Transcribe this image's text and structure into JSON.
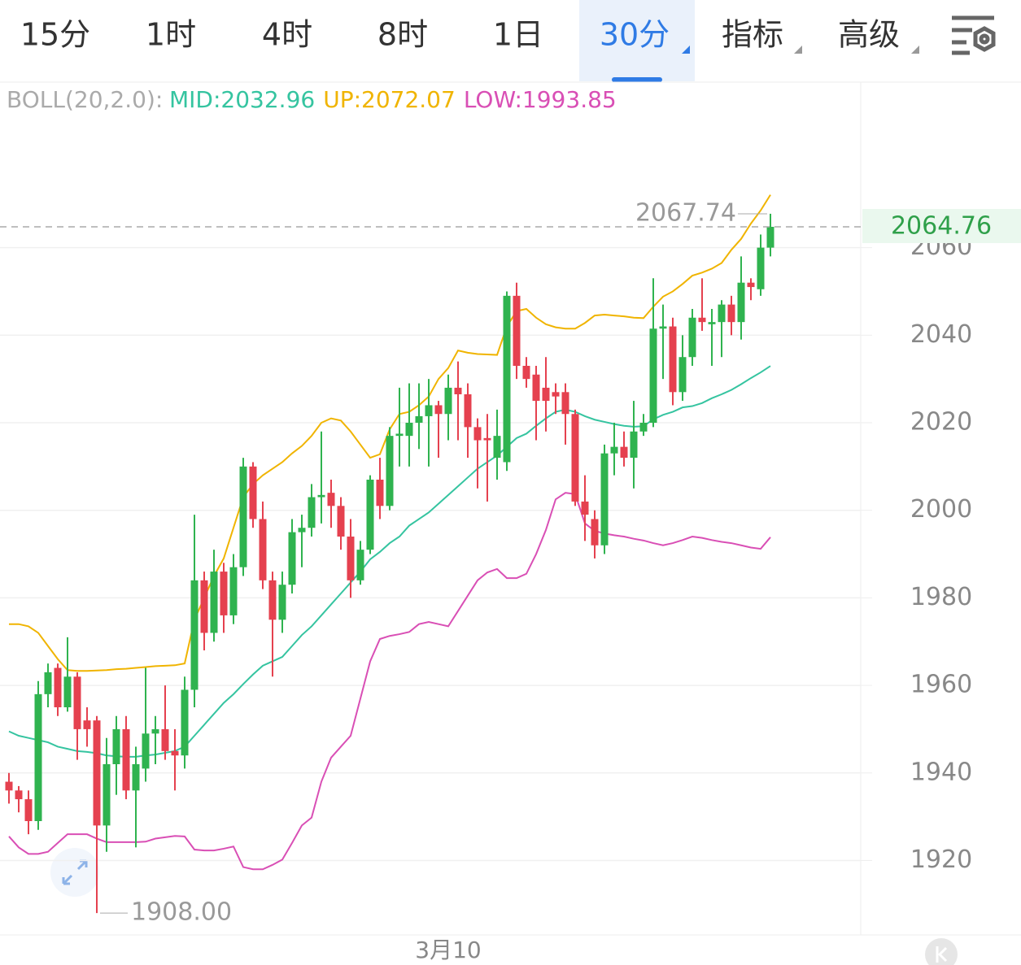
{
  "toolbar": {
    "tabs": [
      "15分",
      "1时",
      "4时",
      "8时",
      "1日",
      "30分",
      "指标",
      "高级"
    ],
    "active": 5
  },
  "chart_data": {
    "type": "candlestick",
    "indicator": "BOLL(20,2.0):",
    "categories": [
      null,
      null,
      null,
      null,
      null,
      null,
      null,
      null,
      null,
      null,
      null,
      null,
      null,
      null,
      null,
      null,
      null,
      null,
      null,
      null,
      null,
      null,
      null,
      null,
      null,
      null,
      null,
      null,
      null,
      null,
      null,
      null,
      null,
      null,
      null,
      null,
      null,
      null,
      null,
      null,
      null,
      null,
      null,
      null,
      null,
      "3月10",
      null,
      null,
      null,
      null,
      null,
      null,
      null,
      null,
      null,
      null,
      null,
      null,
      null,
      null,
      null,
      null,
      null,
      null,
      null,
      null,
      null,
      null,
      null,
      null,
      null,
      null,
      null,
      null,
      null,
      null,
      null,
      null,
      null
    ],
    "open": [
      1938,
      1936,
      1934,
      1929,
      1958,
      1964,
      1955,
      1962,
      1952,
      1952,
      1928,
      1942,
      1950,
      1936,
      1941,
      1949,
      1950,
      1945,
      1944,
      1959,
      1984,
      1972,
      1986,
      1976,
      1987,
      2010,
      1998,
      1984,
      1975,
      1983,
      1995,
      1996,
      2003,
      2004,
      2001,
      1994,
      1984,
      1991,
      2007,
      2001,
      2017,
      2017,
      2020,
      2021.5,
      2024,
      2022,
      2028,
      2026.5,
      2019,
      2016.5,
      2012,
      2011,
      2049,
      2033,
      2031,
      2028,
      2027,
      2027,
      2022,
      2002,
      1998,
      1992,
      2013,
      2014.5,
      2012,
      2018,
      2020,
      2041.5,
      2042,
      2027,
      2035,
      2044,
      2042.5,
      2043,
      2047,
      2043,
      2052,
      2050.5,
      2060
    ],
    "high": [
      1940,
      1937,
      1936,
      1961,
      1965,
      1965,
      1971,
      1963,
      1955,
      1953,
      1948,
      1953,
      1953,
      1946,
      1964,
      1953,
      1960,
      1950,
      1962,
      1999,
      1986,
      1991,
      1988,
      1990,
      2012,
      2011,
      2002,
      1986,
      1986,
      1998,
      1999,
      2006,
      2018,
      2007,
      2003,
      1998,
      1993,
      2008,
      2012,
      2019,
      2028,
      2029,
      2029,
      2030,
      2025,
      2031,
      2034,
      2029,
      2021,
      2022,
      2023,
      2050,
      2052,
      2035,
      2033,
      2035,
      2029,
      2029,
      2023,
      2008,
      2000,
      2015,
      2020,
      2018,
      2025,
      2022,
      2053,
      2047,
      2044,
      2040,
      2046,
      2053,
      2046,
      2048,
      2049,
      2058,
      2053,
      2063,
      2067.74
    ],
    "low": [
      1933,
      1931,
      1926,
      1927,
      1955,
      1953,
      1954,
      1943,
      1946,
      1908,
      1922,
      1935,
      1934,
      1923,
      1938,
      1942,
      1943,
      1936,
      1941,
      1955,
      1968,
      1970,
      1972,
      1974,
      1985,
      1996,
      1982,
      1962,
      1972,
      1981,
      1987,
      1994,
      1997,
      1996,
      1991,
      1980,
      1983,
      1990,
      1998,
      2000,
      2010,
      2010,
      2014,
      2010,
      2012,
      2016,
      2016,
      2012,
      2005,
      2002,
      2007,
      2009,
      2030,
      2028,
      2016,
      2018,
      2022,
      2015,
      2001,
      1993,
      1989,
      1990,
      2008,
      2010,
      2005,
      2017,
      2019,
      2030,
      2024,
      2025,
      2033,
      2041,
      2033,
      2035,
      2040,
      2039,
      2048,
      2049,
      2058
    ],
    "close": [
      1936,
      1934,
      1929,
      1958,
      1963,
      1955,
      1962,
      1950,
      1950,
      1928,
      1942,
      1950,
      1936,
      1942,
      1949,
      1950,
      1945,
      1944,
      1959,
      1984,
      1972,
      1986,
      1976,
      1987,
      2010,
      1998,
      1984,
      1975,
      1983,
      1995,
      1996,
      2003,
      2003.5,
      2001,
      1994,
      1984,
      1991,
      2007,
      2001,
      2017,
      2017.5,
      2020,
      2021.5,
      2024,
      2022,
      2028,
      2026.5,
      2019,
      2016,
      2016,
      2017,
      2049,
      2033,
      2030,
      2025,
      2025,
      2026,
      2022,
      2002,
      1999,
      1992,
      2013,
      2014.5,
      2012,
      2018,
      2020,
      2041.5,
      2042,
      2027,
      2035,
      2044,
      2043,
      2043,
      2047,
      2043,
      2052,
      2051,
      2060,
      2064.76
    ],
    "up_color": "#2fb34f",
    "down_color": "#e5414f",
    "series": [
      {
        "name": "MID:2032.96",
        "color": "#35c4a0",
        "values": [
          1949.5,
          1948.5,
          1948,
          1947.5,
          1947,
          1946,
          1945.5,
          1945,
          1944.8,
          1944.5,
          1944,
          1943.8,
          1943.7,
          1943.7,
          1944,
          1944.2,
          1944.6,
          1945,
          1946,
          1948.5,
          1951,
          1953.5,
          1956,
          1958,
          1960.3,
          1962.5,
          1964.5,
          1965.5,
          1966.5,
          1969,
          1971.5,
          1973.5,
          1976,
          1978.5,
          1981,
          1983.5,
          1986,
          1988.8,
          1990.5,
          1992.5,
          1994,
          1996.5,
          1998,
          1999.5,
          2001.5,
          2003.5,
          2005.5,
          2007.5,
          2009.5,
          2011,
          2012.5,
          2014.5,
          2016.5,
          2017.5,
          2019.3,
          2021,
          2022.5,
          2023,
          2022.5,
          2021.5,
          2020.7,
          2020.2,
          2019.7,
          2019.3,
          2019.1,
          2019.2,
          2020.8,
          2021.8,
          2022.5,
          2023.5,
          2023.8,
          2024.5,
          2025.6,
          2026.5,
          2027.5,
          2028.8,
          2030.2,
          2031.5,
          2032.96
        ]
      },
      {
        "name": "UP:2072.07",
        "color": "#f0b400",
        "values": [
          1974,
          1974,
          1973.5,
          1972,
          1969,
          1966,
          1963.5,
          1963.3,
          1963.3,
          1963.4,
          1963.5,
          1963.7,
          1963.8,
          1964,
          1964.2,
          1964.4,
          1964.5,
          1964.6,
          1965,
          1975,
          1980,
          1985,
          1989,
          1996,
          2003,
          2006,
          2008,
          2009.5,
          2011,
          2013,
          2014.7,
          2017,
          2020,
          2021,
          2020.5,
          2018,
          2015,
          2012,
          2012.8,
          2018.5,
          2022,
          2022.5,
          2024,
          2026,
          2030,
          2032.5,
          2036.5,
          2036,
          2035.7,
          2035.6,
          2035.5,
          2042,
          2045.5,
          2046,
          2044,
          2042.5,
          2041.8,
          2041.5,
          2041.5,
          2042.8,
          2044.5,
          2044.7,
          2044.5,
          2044.3,
          2044,
          2043.9,
          2046.5,
          2048.8,
          2050,
          2051.7,
          2053.6,
          2054.3,
          2055.2,
          2056.5,
          2059.5,
          2062,
          2065.5,
          2068.5,
          2072.07
        ]
      },
      {
        "name": "LOW:1993.85",
        "color": "#d94fb5",
        "values": [
          1925.5,
          1923,
          1921.5,
          1921.5,
          1922,
          1924,
          1926,
          1926,
          1926,
          1925,
          1924.2,
          1924.2,
          1924.2,
          1924.2,
          1924.3,
          1925,
          1925.3,
          1925.6,
          1925.5,
          1922.5,
          1922.3,
          1922.3,
          1922.7,
          1923.2,
          1918.5,
          1918,
          1918,
          1919,
          1920.2,
          1924,
          1928,
          1929.8,
          1938,
          1943.5,
          1946,
          1948.5,
          1957,
          1965.5,
          1970.6,
          1971.3,
          1971.7,
          1972.2,
          1974,
          1974.5,
          1974,
          1973.5,
          1977,
          1980.5,
          1984,
          1985.8,
          1986.6,
          1984.5,
          1984.5,
          1985.5,
          1990,
          1995.5,
          2002.5,
          2004,
          2003.7,
          1997,
          1995.3,
          1994.7,
          1994.3,
          1994,
          1993.5,
          1993.1,
          1992.5,
          1992,
          1992.5,
          1993.2,
          1994,
          1993.7,
          1993.2,
          1992.8,
          1992.5,
          1992,
          1991.5,
          1991.2,
          1993.85
        ]
      }
    ],
    "ylim": [
      1903,
      2098
    ],
    "yticks": [
      1920,
      1940,
      1960,
      1980,
      2000,
      2020,
      2040,
      2060
    ],
    "grid": true,
    "max_label": "2067.74",
    "min_label": "1908.00"
  }
}
